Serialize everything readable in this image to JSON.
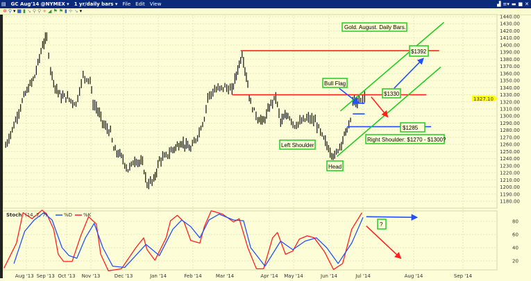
{
  "window": {
    "symbol": "GC Aug'14 @NYMEX ▾",
    "period": "1 yr/daily bars ▾",
    "menu": [
      "File",
      "Edit",
      "View"
    ],
    "toolbar_icons": [
      "settings-icon",
      "zoom-icon",
      "dropdown-icon",
      "color-icon",
      "bar-style-icon",
      "draw-icon",
      "zoom-in-icon",
      "zoom-out-icon",
      "crosshair-icon",
      "trend-icon",
      "flag-icon",
      "flag-icon",
      "volume-icon",
      "cursor-icon",
      "tool-icon",
      "dropdown-icon"
    ],
    "right_icons": [
      "print-icon",
      "menu-icon",
      "minimize-icon",
      "maximize-icon",
      "close-icon"
    ]
  },
  "colors": {
    "background": "#fdfdd8",
    "resistance": "#ff2020",
    "support": "#2050ff",
    "channel": "#22cc22",
    "stoch_k": "#ff2020",
    "stoch_d": "#2050ff",
    "last_price": "#ffff00",
    "titlebar": "#0b2a7a"
  },
  "chart_data": [
    {
      "type": "bar",
      "title": "Gold. August. Daily Bars.",
      "ylim": [
        1180,
        1440
      ],
      "yticks": [
        "1440.00",
        "1430.00",
        "1420.00",
        "1410.00",
        "1400.00",
        "1390.00",
        "1380.00",
        "1370.00",
        "1360.00",
        "1350.00",
        "1340.00",
        "1330.00",
        "1320.00",
        "1310.00",
        "1300.00",
        "1290.00",
        "1280.00",
        "1270.00",
        "1260.00",
        "1250.00",
        "1240.00",
        "1230.00",
        "1220.00",
        "1210.00",
        "1200.00",
        "1190.00",
        "1180.00"
      ],
      "last_price": "1327.10",
      "grid": true,
      "series": [
        {
          "values": [
            [
              "2013-07-07",
              1258
            ],
            [
              "2013-07-17",
              1287
            ],
            [
              "2013-07-29",
              1327
            ],
            [
              "2013-08-16",
              1356
            ],
            [
              "2013-08-30",
              1400
            ],
            [
              "2013-09-05",
              1410
            ],
            [
              "2013-09-10",
              1366
            ],
            [
              "2013-09-16",
              1341
            ],
            [
              "2013-09-24",
              1327
            ],
            [
              "2013-09-30",
              1327
            ],
            [
              "2013-10-13",
              1317
            ],
            [
              "2013-10-22",
              1356
            ],
            [
              "2013-10-31",
              1351
            ],
            [
              "2013-11-03",
              1317
            ],
            [
              "2013-11-06",
              1312
            ],
            [
              "2013-11-13",
              1287
            ],
            [
              "2013-11-19",
              1277
            ],
            [
              "2013-11-22",
              1253
            ],
            [
              "2013-11-29",
              1243
            ],
            [
              "2013-12-05",
              1224
            ],
            [
              "2013-12-11",
              1238
            ],
            [
              "2013-12-18",
              1233
            ],
            [
              "2013-12-22",
              1204
            ],
            [
              "2013-12-28",
              1209
            ],
            [
              "2014-01-02",
              1238
            ],
            [
              "2014-01-08",
              1243
            ],
            [
              "2014-01-14",
              1253
            ],
            [
              "2014-01-22",
              1263
            ],
            [
              "2014-01-30",
              1253
            ],
            [
              "2014-02-05",
              1272
            ],
            [
              "2014-02-11",
              1297
            ],
            [
              "2014-02-14",
              1327
            ],
            [
              "2014-02-20",
              1336
            ],
            [
              "2014-03-01",
              1341
            ],
            [
              "2014-03-06",
              1336
            ],
            [
              "2014-03-10",
              1366
            ],
            [
              "2014-03-13",
              1388
            ],
            [
              "2014-03-16",
              1356
            ],
            [
              "2014-03-19",
              1317
            ],
            [
              "2014-03-24",
              1297
            ],
            [
              "2014-03-28",
              1292
            ],
            [
              "2014-04-03",
              1317
            ],
            [
              "2014-04-09",
              1327
            ],
            [
              "2014-04-15",
              1292
            ],
            [
              "2014-04-24",
              1302
            ],
            [
              "2014-05-02",
              1287
            ],
            [
              "2014-05-08",
              1292
            ],
            [
              "2014-05-14",
              1297
            ],
            [
              "2014-05-20",
              1292
            ],
            [
              "2014-05-26",
              1272
            ],
            [
              "2014-06-02",
              1250
            ],
            [
              "2014-06-06",
              1243
            ],
            [
              "2014-06-12",
              1263
            ],
            [
              "2014-06-17",
              1282
            ],
            [
              "2014-06-20",
              1292
            ],
            [
              "2014-06-22",
              1322
            ],
            [
              "2014-06-26",
              1317
            ],
            [
              "2014-06-29",
              1322
            ],
            [
              "2014-07-02",
              1327
            ]
          ]
        }
      ],
      "annotations": {
        "boxes": {
          "title": "Gold. August. Daily Bars.",
          "target": "$1392",
          "bull_flag": "Bull Flag",
          "resistance": "$1330",
          "support": "$1285",
          "right_shoulder": "Right Shoulder: $1270 - $1300?",
          "left_shoulder": "Left Shoulder",
          "head": "Head"
        },
        "levels": [
          {
            "price": 1392,
            "from": "2014-03-12",
            "to": "2014-08-17",
            "color": "#ff2020"
          },
          {
            "price": 1330,
            "from": "2014-03-06",
            "to": "2014-08-09",
            "color": "#ff2020"
          },
          {
            "price": 1285,
            "from": "2014-06-17",
            "to": "2014-08-12",
            "color": "#2050ff"
          },
          {
            "price": 1318,
            "from": "2014-06-22",
            "to": "2014-07-02",
            "color": "#2050ff"
          },
          {
            "price": 1303,
            "from": "2014-06-22",
            "to": "2014-07-02",
            "color": "#2050ff"
          }
        ],
        "channel": [
          {
            "from": [
              "2014-06-11",
              1307
            ],
            "to": [
              "2014-08-20",
              1432
            ]
          },
          {
            "from": [
              "2014-06-08",
              1243
            ],
            "to": [
              "2014-08-18",
              1369
            ]
          }
        ],
        "arrows": [
          {
            "from": [
              "2014-07-20",
              1339
            ],
            "to": [
              "2014-08-07",
              1381
            ],
            "color": "#2050ff"
          },
          {
            "from": [
              "2014-06-10",
              1339
            ],
            "to": [
              "2014-06-27",
              1318
            ],
            "color": "#2050ff"
          },
          {
            "from": [
              "2014-07-06",
              1327
            ],
            "to": [
              "2014-07-16",
              1299
            ],
            "color": "#ff2020"
          }
        ]
      }
    },
    {
      "type": "line",
      "legend": {
        "name": "Stoch",
        "params": "(14, 7, 7)",
        "items": [
          "%D",
          "%K"
        ]
      },
      "ylim": [
        0,
        100
      ],
      "yticks": [
        "80",
        "60",
        "40",
        "20"
      ],
      "xticks": [
        "Aug '13",
        "Sep '13",
        "Oct '13",
        "Nov '13",
        "Dec '13",
        "Jan '14",
        "Feb '14",
        "Mar '14",
        "Apr '14",
        "May '14",
        "Jun '14",
        "Jul '14",
        "Aug '14",
        "Sep '14"
      ],
      "question_box": "?",
      "series": [
        {
          "name": "%K",
          "color": "#ff2020",
          "values": [
            [
              "2013-07-05",
              9
            ],
            [
              "2013-07-20",
              47
            ],
            [
              "2013-07-28",
              93
            ],
            [
              "2013-08-11",
              84
            ],
            [
              "2013-08-29",
              97
            ],
            [
              "2013-09-05",
              91
            ],
            [
              "2013-09-14",
              68
            ],
            [
              "2013-09-20",
              30
            ],
            [
              "2013-09-27",
              19
            ],
            [
              "2013-10-08",
              19
            ],
            [
              "2013-10-19",
              58
            ],
            [
              "2013-10-29",
              87
            ],
            [
              "2013-11-06",
              76
            ],
            [
              "2013-11-10",
              30
            ],
            [
              "2013-11-17",
              5
            ],
            [
              "2013-11-29",
              8
            ],
            [
              "2013-12-12",
              40
            ],
            [
              "2013-12-19",
              55
            ],
            [
              "2013-12-22",
              37
            ],
            [
              "2013-12-29",
              21
            ],
            [
              "2014-01-08",
              55
            ],
            [
              "2014-01-12",
              81
            ],
            [
              "2014-01-18",
              89
            ],
            [
              "2014-01-24",
              79
            ],
            [
              "2014-01-30",
              51
            ],
            [
              "2014-02-07",
              47
            ],
            [
              "2014-02-11",
              72
            ],
            [
              "2014-02-17",
              96
            ],
            [
              "2014-02-27",
              91
            ],
            [
              "2014-03-07",
              79
            ],
            [
              "2014-03-11",
              84
            ],
            [
              "2014-03-17",
              40
            ],
            [
              "2014-03-23",
              8
            ],
            [
              "2014-03-28",
              8
            ],
            [
              "2014-04-05",
              55
            ],
            [
              "2014-04-11",
              63
            ],
            [
              "2014-04-21",
              30
            ],
            [
              "2014-04-30",
              35
            ],
            [
              "2014-05-06",
              53
            ],
            [
              "2014-05-13",
              58
            ],
            [
              "2014-05-19",
              55
            ],
            [
              "2014-05-28",
              34
            ],
            [
              "2014-06-05",
              7
            ],
            [
              "2014-06-13",
              16
            ],
            [
              "2014-06-21",
              68
            ],
            [
              "2014-06-30",
              93
            ]
          ]
        },
        {
          "name": "%D",
          "color": "#2050ff",
          "values": [
            [
              "2013-07-17",
              16
            ],
            [
              "2013-07-30",
              65
            ],
            [
              "2013-08-15",
              82
            ],
            [
              "2013-09-01",
              93
            ],
            [
              "2013-09-12",
              82
            ],
            [
              "2013-09-25",
              40
            ],
            [
              "2013-10-04",
              28
            ],
            [
              "2013-10-14",
              24
            ],
            [
              "2013-10-25",
              55
            ],
            [
              "2013-11-04",
              77
            ],
            [
              "2013-11-12",
              40
            ],
            [
              "2013-11-21",
              12
            ],
            [
              "2013-12-02",
              10
            ],
            [
              "2013-12-21",
              45
            ],
            [
              "2014-01-02",
              28
            ],
            [
              "2014-01-14",
              68
            ],
            [
              "2014-01-22",
              82
            ],
            [
              "2014-01-30",
              72
            ],
            [
              "2014-02-07",
              55
            ],
            [
              "2014-02-15",
              82
            ],
            [
              "2014-02-24",
              91
            ],
            [
              "2014-03-07",
              82
            ],
            [
              "2014-03-14",
              81
            ],
            [
              "2014-03-19",
              40
            ],
            [
              "2014-03-29",
              12
            ],
            [
              "2014-04-15",
              50
            ],
            [
              "2014-04-30",
              37
            ],
            [
              "2014-05-11",
              50
            ],
            [
              "2014-05-21",
              55
            ],
            [
              "2014-05-30",
              40
            ],
            [
              "2014-06-09",
              16
            ],
            [
              "2014-06-21",
              47
            ],
            [
              "2014-07-01",
              86
            ]
          ]
        }
      ],
      "arrows": [
        {
          "from": [
            "2014-07-03",
            87
          ],
          "to": [
            "2014-08-03",
            86
          ],
          "color": "#2050ff"
        },
        {
          "from": [
            "2014-07-03",
            73
          ],
          "to": [
            "2014-07-24",
            24
          ],
          "color": "#ff2020"
        }
      ]
    }
  ]
}
